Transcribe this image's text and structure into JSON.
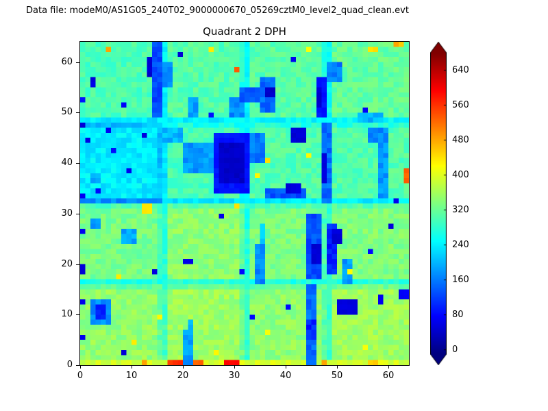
{
  "header": {
    "datafile": "Data file: modeM0/AS1G05_240T02_9000000670_05269cztM0_level2_quad_clean.evt"
  },
  "chart_data": {
    "type": "heatmap",
    "title": "Quadrant 2 DPH",
    "xlabel": "",
    "ylabel": "",
    "xlim": [
      0,
      64
    ],
    "ylim": [
      0,
      64
    ],
    "xticks": [
      0,
      10,
      20,
      30,
      40,
      50,
      60
    ],
    "yticks": [
      0,
      10,
      20,
      30,
      40,
      50,
      60
    ],
    "colormap": "jet",
    "vmin": -10,
    "vmax": 680,
    "grid_size": 64,
    "colorbar": {
      "ticks": [
        0,
        80,
        160,
        240,
        320,
        400,
        480,
        560,
        640
      ],
      "extend": "both",
      "position": "right"
    },
    "module_grid": {
      "rows": 4,
      "cols": 4,
      "module_size": 16,
      "note": "base counts per 16x16 detector module, rows listed bottom-to-top",
      "base_values": [
        [
          348,
          356,
          346,
          356
        ],
        [
          330,
          344,
          332,
          336
        ],
        [
          238,
          298,
          304,
          306
        ],
        [
          300,
          306,
          310,
          316
        ]
      ]
    },
    "gap_drop": 65,
    "noise_amplitude": 42,
    "features": [
      [
        0,
        0,
        64,
        1,
        395
      ],
      [
        17,
        0,
        3,
        1,
        560
      ],
      [
        22,
        0,
        2,
        1,
        520
      ],
      [
        28,
        0,
        3,
        1,
        590
      ],
      [
        47,
        0,
        1,
        1,
        470
      ],
      [
        56,
        0,
        2,
        1,
        450
      ],
      [
        12,
        0,
        1,
        1,
        480
      ],
      [
        44,
        0,
        2,
        16,
        150
      ],
      [
        44,
        5,
        2,
        4,
        100
      ],
      [
        50,
        10,
        4,
        3,
        50
      ],
      [
        2,
        8,
        4,
        5,
        170
      ],
      [
        3,
        9,
        2,
        3,
        95
      ],
      [
        20,
        0,
        2,
        7,
        180
      ],
      [
        21,
        6,
        1,
        3,
        210
      ],
      [
        8,
        2,
        1,
        1,
        55
      ],
      [
        58,
        12,
        1,
        2,
        60
      ],
      [
        62,
        13,
        2,
        2,
        70
      ],
      [
        33,
        9,
        1,
        1,
        85
      ],
      [
        40,
        11,
        1,
        1,
        75
      ],
      [
        10,
        4,
        1,
        1,
        430
      ],
      [
        26,
        2,
        1,
        1,
        440
      ],
      [
        36,
        6,
        1,
        1,
        420
      ],
      [
        55,
        3,
        1,
        1,
        430
      ],
      [
        15,
        9,
        1,
        1,
        440
      ],
      [
        44,
        17,
        3,
        13,
        130
      ],
      [
        48,
        18,
        2,
        10,
        100
      ],
      [
        45,
        20,
        2,
        4,
        45
      ],
      [
        49,
        24,
        2,
        3,
        50
      ],
      [
        51,
        16,
        2,
        5,
        180
      ],
      [
        34,
        16,
        2,
        8,
        170
      ],
      [
        35,
        24,
        1,
        4,
        210
      ],
      [
        8,
        24,
        3,
        3,
        190
      ],
      [
        2,
        27,
        2,
        2,
        170
      ],
      [
        20,
        20,
        2,
        1,
        55
      ],
      [
        14,
        18,
        1,
        1,
        65
      ],
      [
        27,
        29,
        1,
        1,
        70
      ],
      [
        56,
        22,
        1,
        1,
        80
      ],
      [
        60,
        27,
        1,
        1,
        60
      ],
      [
        31,
        18,
        1,
        1,
        75
      ],
      [
        12,
        30,
        2,
        2,
        430
      ],
      [
        30,
        31,
        1,
        1,
        450
      ],
      [
        52,
        18,
        1,
        1,
        420
      ],
      [
        7,
        17,
        1,
        1,
        430
      ],
      [
        26,
        34,
        7,
        12,
        90
      ],
      [
        27,
        36,
        5,
        8,
        40
      ],
      [
        20,
        38,
        6,
        6,
        180
      ],
      [
        16,
        44,
        4,
        3,
        200
      ],
      [
        33,
        40,
        3,
        6,
        160
      ],
      [
        36,
        33,
        8,
        2,
        130
      ],
      [
        40,
        34,
        3,
        2,
        55
      ],
      [
        41,
        44,
        3,
        3,
        50
      ],
      [
        47,
        32,
        2,
        16,
        150
      ],
      [
        47,
        36,
        1,
        6,
        55
      ],
      [
        58,
        33,
        2,
        12,
        180
      ],
      [
        56,
        44,
        4,
        3,
        170
      ],
      [
        63,
        36,
        1,
        3,
        520
      ],
      [
        61,
        32,
        1,
        1,
        60
      ],
      [
        3,
        34,
        1,
        1,
        80
      ],
      [
        9,
        38,
        1,
        1,
        70
      ],
      [
        6,
        42,
        1,
        1,
        90
      ],
      [
        12,
        45,
        1,
        1,
        60
      ],
      [
        1,
        44,
        1,
        1,
        55
      ],
      [
        5,
        46,
        1,
        1,
        75
      ],
      [
        2,
        36,
        2,
        2,
        200
      ],
      [
        36,
        40,
        1,
        1,
        440
      ],
      [
        34,
        37,
        1,
        1,
        420
      ],
      [
        44,
        41,
        1,
        1,
        430
      ],
      [
        14,
        49,
        2,
        15,
        130
      ],
      [
        13,
        57,
        1,
        4,
        45
      ],
      [
        16,
        55,
        2,
        5,
        170
      ],
      [
        21,
        49,
        2,
        4,
        180
      ],
      [
        29,
        49,
        3,
        4,
        170
      ],
      [
        31,
        52,
        5,
        3,
        140
      ],
      [
        35,
        50,
        3,
        7,
        150
      ],
      [
        36,
        53,
        2,
        2,
        40
      ],
      [
        46,
        49,
        2,
        8,
        90
      ],
      [
        46,
        51,
        1,
        4,
        45
      ],
      [
        48,
        56,
        3,
        4,
        160
      ],
      [
        54,
        48,
        5,
        2,
        200
      ],
      [
        2,
        55,
        1,
        2,
        60
      ],
      [
        8,
        51,
        1,
        1,
        70
      ],
      [
        19,
        61,
        1,
        1,
        55
      ],
      [
        25,
        49,
        1,
        1,
        80
      ],
      [
        41,
        60,
        1,
        1,
        60
      ],
      [
        55,
        50,
        1,
        1,
        75
      ],
      [
        30,
        58,
        1,
        1,
        520
      ],
      [
        5,
        62,
        1,
        1,
        470
      ],
      [
        25,
        62,
        1,
        1,
        430
      ],
      [
        56,
        62,
        2,
        1,
        440
      ],
      [
        61,
        63,
        2,
        1,
        470
      ],
      [
        44,
        62,
        1,
        1,
        430
      ],
      [
        0,
        5,
        1,
        1,
        60
      ],
      [
        0,
        18,
        1,
        2,
        55
      ],
      [
        0,
        26,
        1,
        1,
        70
      ],
      [
        0,
        33,
        1,
        1,
        60
      ],
      [
        0,
        47,
        1,
        1,
        55
      ],
      [
        0,
        52,
        1,
        1,
        80
      ],
      [
        0,
        12,
        1,
        1,
        65
      ]
    ]
  }
}
